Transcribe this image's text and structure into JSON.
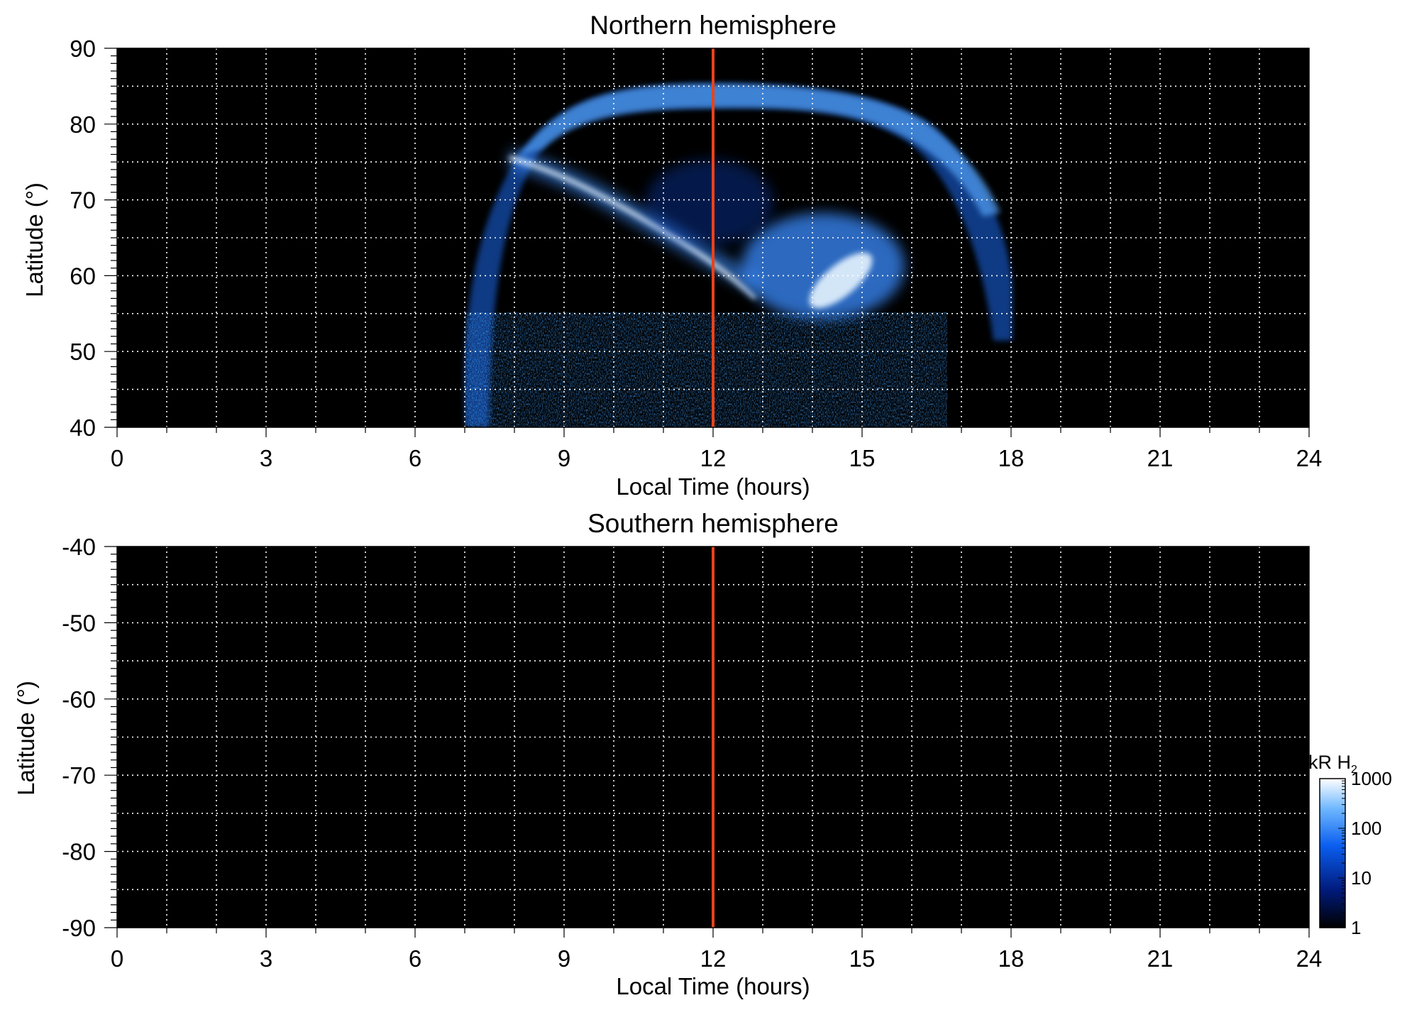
{
  "chart_data": [
    {
      "type": "heatmap",
      "title": "Northern hemisphere",
      "xlabel": "Local Time (hours)",
      "ylabel": "Latitude (°)",
      "xlim": [
        0,
        24
      ],
      "ylim": [
        40,
        90
      ],
      "x_ticks": [
        0,
        3,
        6,
        9,
        12,
        15,
        18,
        21,
        24
      ],
      "y_ticks": [
        40,
        50,
        60,
        70,
        80,
        90
      ],
      "grid": true,
      "marker_line": {
        "x": 12,
        "color": "#e8431c"
      },
      "emission_features": [
        {
          "kind": "oval-band",
          "local_time": [
            7.0,
            18.0
          ],
          "latitude": [
            40,
            85
          ]
        },
        {
          "kind": "arc",
          "points": [
            [
              8.3,
              75
            ],
            [
              9.5,
              72
            ],
            [
              12.0,
              60.5
            ],
            [
              12.9,
              57
            ]
          ],
          "peak_kR": 1000
        },
        {
          "kind": "patch",
          "center_lt": 14.6,
          "center_lat": 59,
          "peak_kR": 1000
        },
        {
          "kind": "noise-floor",
          "local_time": [
            7.0,
            16.6
          ],
          "latitude": [
            40,
            50
          ]
        }
      ]
    },
    {
      "type": "heatmap",
      "title": "Southern hemisphere",
      "xlabel": "Local Time (hours)",
      "ylabel": "Latitude (°)",
      "xlim": [
        0,
        24
      ],
      "ylim": [
        -90,
        -40
      ],
      "x_ticks": [
        0,
        3,
        6,
        9,
        12,
        15,
        18,
        21,
        24
      ],
      "y_ticks": [
        -40,
        -50,
        -60,
        -70,
        -80,
        -90
      ],
      "grid": true,
      "marker_line": {
        "x": 12,
        "color": "#e8431c"
      },
      "emission_features": []
    }
  ],
  "colorbar": {
    "label": "kR H",
    "label_subscript": "2",
    "scale": "log",
    "range": [
      1,
      1000
    ],
    "ticks": [
      "1000",
      "100",
      "10",
      "1"
    ]
  }
}
